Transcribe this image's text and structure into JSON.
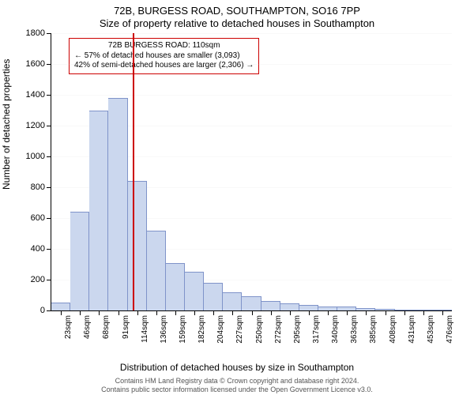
{
  "title_line1": "72B, BURGESS ROAD, SOUTHAMPTON, SO16 7PP",
  "title_line2": "Size of property relative to detached houses in Southampton",
  "y_label": "Number of detached properties",
  "x_label": "Distribution of detached houses by size in Southampton",
  "footer_line1": "Contains HM Land Registry data © Crown copyright and database right 2024.",
  "footer_line2": "Contains public sector information licensed under the Open Government Licence v3.0.",
  "chart": {
    "type": "bar-histogram",
    "ylim": [
      0,
      1800
    ],
    "ytick_step": 200,
    "background_color": "#ffffff",
    "grid_color": "#d9d9d9",
    "bar_fill": "#cbd7ee",
    "bar_stroke": "#7f93c9",
    "bar_gap": 0,
    "marker_line_color": "#cc0000",
    "marker_x_value": 110,
    "annot_border_color": "#cc0000",
    "annot": {
      "line1": "72B BURGESS ROAD: 110sqm",
      "line2": "← 57% of detached houses are smaller (3,093)",
      "line3": "42% of semi-detached houses are larger (2,306) →"
    },
    "x_ticks": [
      "23sqm",
      "46sqm",
      "68sqm",
      "91sqm",
      "114sqm",
      "136sqm",
      "159sqm",
      "182sqm",
      "204sqm",
      "227sqm",
      "250sqm",
      "272sqm",
      "295sqm",
      "317sqm",
      "340sqm",
      "363sqm",
      "385sqm",
      "408sqm",
      "431sqm",
      "453sqm",
      "476sqm"
    ],
    "values": [
      50,
      640,
      1300,
      1380,
      840,
      520,
      310,
      250,
      180,
      120,
      90,
      60,
      45,
      35,
      25,
      25,
      15,
      10,
      5,
      2,
      2
    ]
  }
}
